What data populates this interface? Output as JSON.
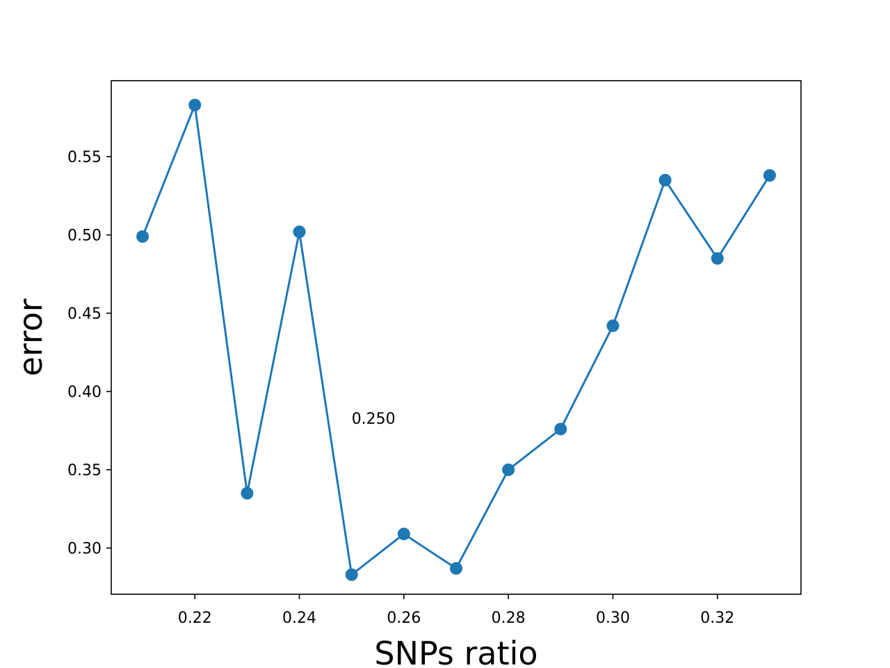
{
  "chart_data": {
    "type": "line",
    "title": "",
    "xlabel": "SNPs ratio",
    "ylabel": "error",
    "xlim": [
      0.204,
      0.336
    ],
    "ylim": [
      0.2705,
      0.5985
    ],
    "xticks": [
      0.22,
      0.24,
      0.26,
      0.28,
      0.3,
      0.32
    ],
    "xtick_labels": [
      "0.22",
      "0.24",
      "0.26",
      "0.28",
      "0.30",
      "0.32"
    ],
    "yticks": [
      0.3,
      0.35,
      0.4,
      0.45,
      0.5,
      0.55
    ],
    "ytick_labels": [
      "0.30",
      "0.35",
      "0.40",
      "0.45",
      "0.50",
      "0.55"
    ],
    "grid": false,
    "series": [
      {
        "color": "#1f77b4",
        "marker": "circle",
        "x": [
          0.21,
          0.22,
          0.23,
          0.24,
          0.25,
          0.26,
          0.27,
          0.28,
          0.29,
          0.3,
          0.31,
          0.32,
          0.33
        ],
        "y": [
          0.499,
          0.583,
          0.335,
          0.502,
          0.283,
          0.309,
          0.287,
          0.35,
          0.376,
          0.442,
          0.535,
          0.485,
          0.538
        ]
      }
    ],
    "annotations": [
      {
        "text": "0.250",
        "x": 0.25,
        "y": 0.383
      }
    ]
  }
}
